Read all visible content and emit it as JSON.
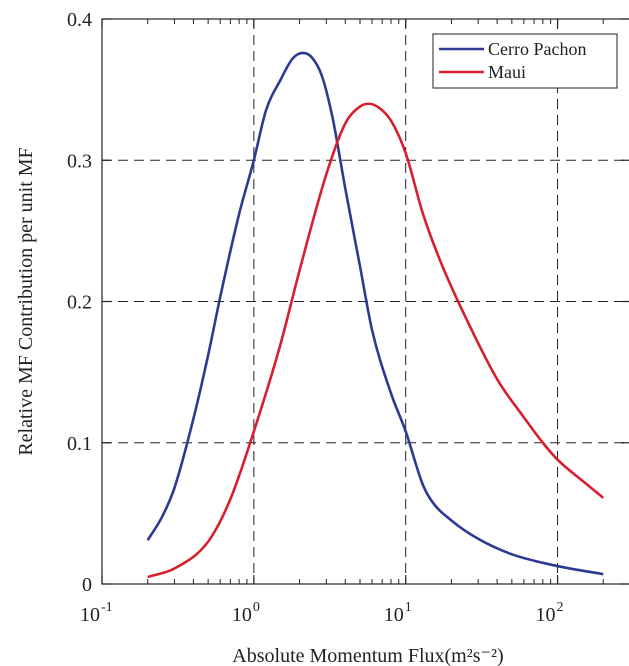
{
  "chart_data": {
    "type": "line",
    "xscale": "log",
    "xlim": [
      0.1,
      300
    ],
    "ylim": [
      0,
      0.4
    ],
    "xlabel": "Absolute Momentum Flux(m²s⁻²)",
    "ylabel": "Relative MF Contribution per unit MF",
    "x_ticks": [
      {
        "value": 0.1,
        "base": "10",
        "exp": "-1"
      },
      {
        "value": 1,
        "base": "10",
        "exp": "0"
      },
      {
        "value": 10,
        "base": "10",
        "exp": "1"
      },
      {
        "value": 100,
        "base": "10",
        "exp": "2"
      }
    ],
    "y_ticks": [
      {
        "value": 0,
        "label": "0"
      },
      {
        "value": 0.1,
        "label": "0.1"
      },
      {
        "value": 0.2,
        "label": "0.2"
      },
      {
        "value": 0.3,
        "label": "0.3"
      },
      {
        "value": 0.4,
        "label": "0.4"
      }
    ],
    "grid": {
      "x": [
        1,
        10,
        100
      ],
      "y": [
        0.1,
        0.2,
        0.3
      ],
      "style": "dashed"
    },
    "legend_position": "top-right",
    "series": [
      {
        "name": "Cerro Pachon",
        "color": "#2e3a92",
        "x": [
          0.2,
          0.25,
          0.3,
          0.4,
          0.5,
          0.6,
          0.8,
          1.0,
          1.2,
          1.5,
          1.8,
          2.1,
          2.4,
          2.8,
          3.3,
          4.0,
          5.0,
          6.0,
          8.0,
          10.0,
          13.0,
          15.0,
          20.0,
          30.0,
          50.0,
          80.0,
          120.0,
          200.0
        ],
        "y": [
          0.031,
          0.048,
          0.068,
          0.117,
          0.162,
          0.203,
          0.262,
          0.3,
          0.335,
          0.357,
          0.372,
          0.376,
          0.373,
          0.36,
          0.33,
          0.28,
          0.225,
          0.18,
          0.135,
          0.108,
          0.07,
          0.058,
          0.045,
          0.032,
          0.021,
          0.015,
          0.011,
          0.007
        ]
      },
      {
        "name": "Maui",
        "color": "#d61f2f",
        "x": [
          0.2,
          0.3,
          0.5,
          0.7,
          1.0,
          1.5,
          2.0,
          3.0,
          4.0,
          5.0,
          5.7,
          6.5,
          8.0,
          10.0,
          13.0,
          17.0,
          25.0,
          40.0,
          60.0,
          80.0,
          100.0,
          150.0,
          200.0
        ],
        "y": [
          0.005,
          0.011,
          0.03,
          0.06,
          0.108,
          0.17,
          0.222,
          0.29,
          0.326,
          0.338,
          0.34,
          0.338,
          0.328,
          0.305,
          0.262,
          0.228,
          0.188,
          0.145,
          0.118,
          0.1,
          0.088,
          0.072,
          0.061
        ]
      }
    ]
  }
}
